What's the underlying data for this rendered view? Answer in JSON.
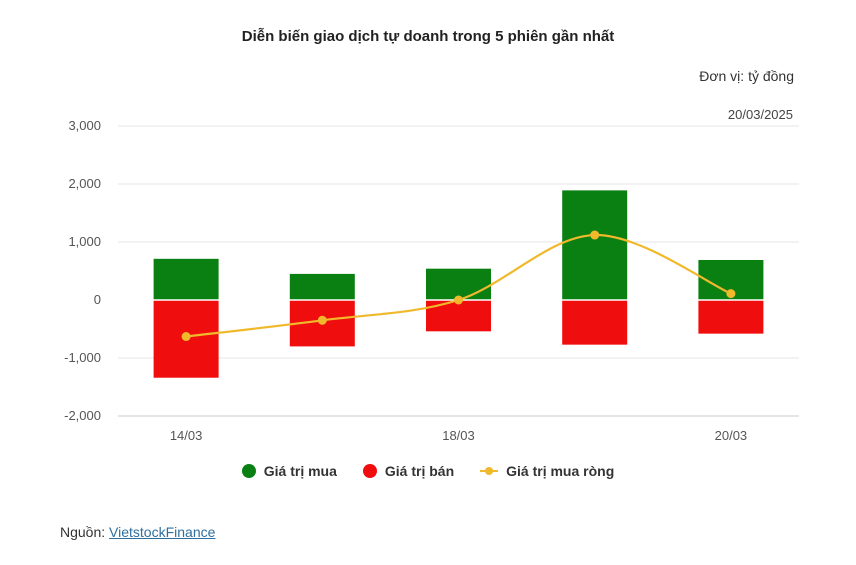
{
  "colors": {
    "buy": "#0a8012",
    "sell": "#f00d0d",
    "net": "#f0b92b",
    "grid": "#e6e6e6",
    "axis": "#cccccc"
  },
  "source": {
    "label": "Nguồn: ",
    "link_text": "VietstockFinance"
  },
  "chart_data": {
    "type": "bar",
    "title": "Diễn biến giao dịch tự doanh trong 5 phiên gần nhất",
    "unit": "Đơn vị: tỷ đồng",
    "date_label": "20/03/2025",
    "categories": [
      "14/03",
      "",
      "18/03",
      "",
      "20/03"
    ],
    "ylim": [
      -2000,
      3000
    ],
    "yticks": [
      3000,
      2000,
      1000,
      0,
      -1000,
      -2000
    ],
    "ytick_labels": [
      "3,000",
      "2,000",
      "1,000",
      "0",
      "-1,000",
      "-2,000"
    ],
    "grid": true,
    "legend_position": "bottom",
    "series": [
      {
        "name": "Giá trị mua",
        "kind": "bar",
        "color_key": "buy",
        "values": [
          710,
          450,
          540,
          1890,
          690
        ]
      },
      {
        "name": "Giá trị bán",
        "kind": "bar",
        "color_key": "sell",
        "values": [
          -1340,
          -800,
          -540,
          -770,
          -580
        ]
      },
      {
        "name": "Giá trị mua ròng",
        "kind": "line",
        "color_key": "net",
        "values": [
          -630,
          -350,
          0,
          1120,
          110
        ]
      }
    ]
  }
}
